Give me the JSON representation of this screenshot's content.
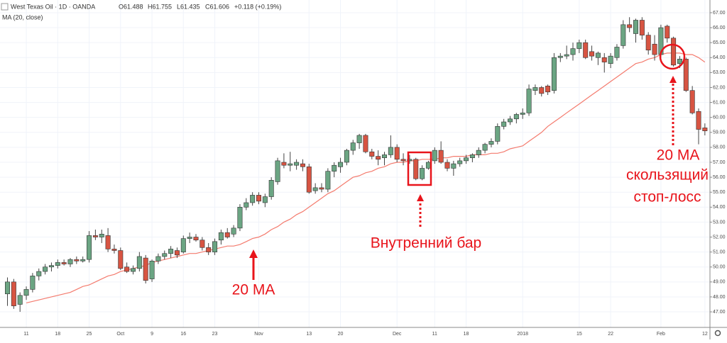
{
  "chart_data": {
    "type": "candlestick",
    "symbol": "West Texas Oil · 1D · OANDA",
    "ohlc_labels": [
      "O61.488",
      "H61.755",
      "L61.435",
      "C61.606",
      "+0.118 (+0.19%)"
    ],
    "annotations": [
      "20 MA",
      "Внутренний бар",
      "20 MA",
      "скользящий",
      "стоп-лосс"
    ],
    "categories": [
      null,
      null,
      null,
      "11",
      null,
      null,
      null,
      null,
      "18",
      null,
      null,
      null,
      null,
      "25",
      null,
      null,
      null,
      null,
      "Oct",
      null,
      null,
      null,
      null,
      "9",
      null,
      null,
      null,
      null,
      "16",
      null,
      null,
      null,
      null,
      "23",
      null,
      null,
      null,
      null,
      null,
      null,
      "Nov",
      null,
      null,
      null,
      null,
      null,
      null,
      null,
      "13",
      null,
      null,
      null,
      null,
      "20",
      null,
      null,
      null,
      null,
      null,
      null,
      null,
      null,
      "Dec",
      null,
      null,
      null,
      null,
      null,
      "11",
      null,
      null,
      null,
      null,
      "18",
      null,
      null,
      null,
      null,
      null,
      null,
      null,
      null,
      "2018",
      null,
      null,
      null,
      null,
      null,
      null,
      null,
      null,
      "15",
      null,
      null,
      null,
      null,
      "22",
      null,
      null,
      null,
      null,
      null,
      null,
      null,
      "Feb",
      null,
      null,
      null,
      null,
      null,
      null,
      "12"
    ],
    "open": [
      48.2,
      49.0,
      47.5,
      48.1,
      48.5,
      49.4,
      49.7,
      50.0,
      50.1,
      50.3,
      50.2,
      50.5,
      50.4,
      50.5,
      52.1,
      52.0,
      52.1,
      51.2,
      51.1,
      50.0,
      49.7,
      49.9,
      50.6,
      49.2,
      50.4,
      50.7,
      50.9,
      51.1,
      51.0,
      51.9,
      52.0,
      51.8,
      51.3,
      51.0,
      51.8,
      52.3,
      52.2,
      52.6,
      54.0,
      54.3,
      54.8,
      54.3,
      54.7,
      55.7,
      57.0,
      56.8,
      56.8,
      56.9,
      56.7,
      55.1,
      55.3,
      55.2,
      56.4,
      56.7,
      57.0,
      57.8,
      58.3,
      58.8,
      57.7,
      57.4,
      57.3,
      57.5,
      58.0,
      57.2,
      57.1,
      57.2,
      55.9,
      56.6,
      57.1,
      57.8,
      57.0,
      56.6,
      56.9,
      57.1,
      57.3,
      57.5,
      57.8,
      58.2,
      58.4,
      59.4,
      59.7,
      59.9,
      60.2,
      60.3,
      61.8,
      62.0,
      62.1,
      61.8,
      64.0,
      64.1,
      64.2,
      64.6,
      65.0,
      64.4,
      64.0,
      64.0,
      63.6,
      64.0,
      64.8,
      66.2,
      65.6,
      66.5,
      65.5,
      64.9,
      64.2,
      66.1,
      65.3,
      63.6,
      63.9,
      61.8,
      60.4,
      59.3
    ],
    "high": [
      49.3,
      49.2,
      48.3,
      48.7,
      49.6,
      49.9,
      50.2,
      50.3,
      50.5,
      50.5,
      50.6,
      50.7,
      50.7,
      52.4,
      52.5,
      52.5,
      52.6,
      51.5,
      51.3,
      50.3,
      50.1,
      51.0,
      50.8,
      50.5,
      50.9,
      51.1,
      51.4,
      51.3,
      52.1,
      52.3,
      52.2,
      52.0,
      51.6,
      51.9,
      52.5,
      52.6,
      52.8,
      54.2,
      54.6,
      55.0,
      55.0,
      54.9,
      56.0,
      57.3,
      57.6,
      57.7,
      57.2,
      57.2,
      56.9,
      55.6,
      55.6,
      56.6,
      57.0,
      57.3,
      57.9,
      58.5,
      58.9,
      58.9,
      57.9,
      57.8,
      57.7,
      58.8,
      58.2,
      57.6,
      57.5,
      57.3,
      56.8,
      57.1,
      58.0,
      58.4,
      57.2,
      57.1,
      57.3,
      57.5,
      57.6,
      58.0,
      58.3,
      58.6,
      59.6,
      59.9,
      60.1,
      60.3,
      60.6,
      62.2,
      62.2,
      62.1,
      62.2,
      64.3,
      64.3,
      64.8,
      65.0,
      65.2,
      65.2,
      64.8,
      64.4,
      64.3,
      64.3,
      64.9,
      66.5,
      66.7,
      66.6,
      66.7,
      65.7,
      65.5,
      66.2,
      66.2,
      65.4,
      64.1,
      64.0,
      62.1,
      60.6,
      59.6
    ],
    "low": [
      47.4,
      47.2,
      47.0,
      47.8,
      48.3,
      49.1,
      49.5,
      49.7,
      49.9,
      50.1,
      50.0,
      50.2,
      50.3,
      50.3,
      51.8,
      51.6,
      51.0,
      50.9,
      49.8,
      49.6,
      49.5,
      49.7,
      48.9,
      49.0,
      50.2,
      50.5,
      50.6,
      50.6,
      50.9,
      51.6,
      51.7,
      51.1,
      50.8,
      50.8,
      51.5,
      51.9,
      52.0,
      52.4,
      53.8,
      54.1,
      54.2,
      54.0,
      54.5,
      55.5,
      56.6,
      56.4,
      56.5,
      56.4,
      54.9,
      54.9,
      55.0,
      55.0,
      56.0,
      56.3,
      56.8,
      57.5,
      57.9,
      57.6,
      57.2,
      56.8,
      56.8,
      57.3,
      57.0,
      56.8,
      56.9,
      55.8,
      55.8,
      56.5,
      56.9,
      56.9,
      56.4,
      56.1,
      56.7,
      56.9,
      57.0,
      57.3,
      57.6,
      58.0,
      58.2,
      59.2,
      59.5,
      59.6,
      59.9,
      60.1,
      61.5,
      61.4,
      61.5,
      61.6,
      63.7,
      63.9,
      63.8,
      64.3,
      63.9,
      63.8,
      63.5,
      63.0,
      63.3,
      63.8,
      64.6,
      65.7,
      65.0,
      65.2,
      64.2,
      63.8,
      64.0,
      65.0,
      63.4,
      63.3,
      61.7,
      60.2,
      58.2,
      58.8
    ],
    "close": [
      49.0,
      47.4,
      48.1,
      48.5,
      49.4,
      49.7,
      50.0,
      50.1,
      50.3,
      50.2,
      50.5,
      50.4,
      50.5,
      52.1,
      52.0,
      52.2,
      51.2,
      51.1,
      49.9,
      49.7,
      49.9,
      50.7,
      49.1,
      50.4,
      50.7,
      50.9,
      51.2,
      50.8,
      51.9,
      52.0,
      51.8,
      51.3,
      51.0,
      51.7,
      52.3,
      52.0,
      52.6,
      54.0,
      54.3,
      54.8,
      54.4,
      54.7,
      55.8,
      57.1,
      56.8,
      56.9,
      57.0,
      56.7,
      55.0,
      55.3,
      55.2,
      56.4,
      56.8,
      57.0,
      57.8,
      58.3,
      58.8,
      57.7,
      57.4,
      57.2,
      57.5,
      58.0,
      57.2,
      57.1,
      57.2,
      55.9,
      56.6,
      57.0,
      57.8,
      57.0,
      56.6,
      56.9,
      57.1,
      57.3,
      57.5,
      57.8,
      58.2,
      58.4,
      59.4,
      59.7,
      59.9,
      60.2,
      60.3,
      61.9,
      62.0,
      61.6,
      61.7,
      64.0,
      64.1,
      64.2,
      64.6,
      65.0,
      64.0,
      64.1,
      64.3,
      63.7,
      64.1,
      64.7,
      66.2,
      66.0,
      66.5,
      65.5,
      64.5,
      64.2,
      66.0,
      65.3,
      63.5,
      63.9,
      61.8,
      60.3,
      59.2,
      59.1
    ],
    "up_color": "#6ba583",
    "down_color": "#d75442",
    "ma": {
      "name": "MA (20, close)",
      "color": "#f47b6e",
      "values": [
        null,
        null,
        null,
        47.6,
        47.7,
        47.8,
        47.9,
        48.0,
        48.1,
        48.2,
        48.3,
        48.5,
        48.7,
        48.8,
        49.0,
        49.2,
        49.4,
        49.5,
        49.7,
        49.8,
        49.9,
        50.0,
        50.1,
        50.3,
        50.4,
        50.5,
        50.6,
        50.7,
        50.8,
        50.9,
        50.9,
        51.0,
        51.1,
        51.2,
        51.3,
        51.4,
        51.4,
        51.5,
        51.7,
        51.9,
        52.0,
        52.2,
        52.5,
        52.7,
        53.0,
        53.2,
        53.5,
        53.7,
        54.0,
        54.3,
        54.6,
        54.9,
        55.1,
        55.4,
        55.7,
        56.0,
        56.1,
        56.3,
        56.4,
        56.6,
        56.7,
        56.9,
        57.0,
        57.0,
        57.1,
        57.1,
        57.2,
        57.2,
        57.2,
        57.3,
        57.3,
        57.4,
        57.4,
        57.4,
        57.5,
        57.5,
        57.5,
        57.6,
        57.6,
        57.7,
        57.9,
        58.0,
        58.1,
        58.4,
        58.7,
        59.0,
        59.4,
        59.7,
        60.0,
        60.3,
        60.6,
        60.9,
        61.2,
        61.5,
        61.8,
        62.1,
        62.4,
        62.7,
        63.0,
        63.3,
        63.6,
        63.7,
        63.9,
        64.0,
        64.2,
        64.3,
        64.3,
        64.3,
        64.2,
        64.2,
        64.0,
        63.7
      ]
    },
    "ylim": [
      45.96,
      67.85
    ],
    "yticks": [
      {
        "value": 47,
        "label": "47.00"
      },
      {
        "value": 48,
        "label": "48.00"
      },
      {
        "value": 49,
        "label": "49.00"
      },
      {
        "value": 50,
        "label": "50.00"
      },
      {
        "value": 51,
        "label": "51.00"
      },
      {
        "value": 52,
        "label": "52.00"
      },
      {
        "value": 53,
        "label": "53.00"
      },
      {
        "value": 54,
        "label": "54.00"
      },
      {
        "value": 55,
        "label": "55.00"
      },
      {
        "value": 56,
        "label": "56.00"
      },
      {
        "value": 57,
        "label": "57.00"
      },
      {
        "value": 58,
        "label": "58.00"
      },
      {
        "value": 59,
        "label": "59.00"
      },
      {
        "value": 60,
        "label": "60.00"
      },
      {
        "value": 61,
        "label": "61.00"
      },
      {
        "value": 62,
        "label": "62.00"
      },
      {
        "value": 63,
        "label": "63.00"
      },
      {
        "value": 64,
        "label": "64.00"
      },
      {
        "value": 65,
        "label": "65.00"
      },
      {
        "value": 66,
        "label": "66.00"
      },
      {
        "value": 67,
        "label": "67.00"
      }
    ],
    "grid": true
  }
}
